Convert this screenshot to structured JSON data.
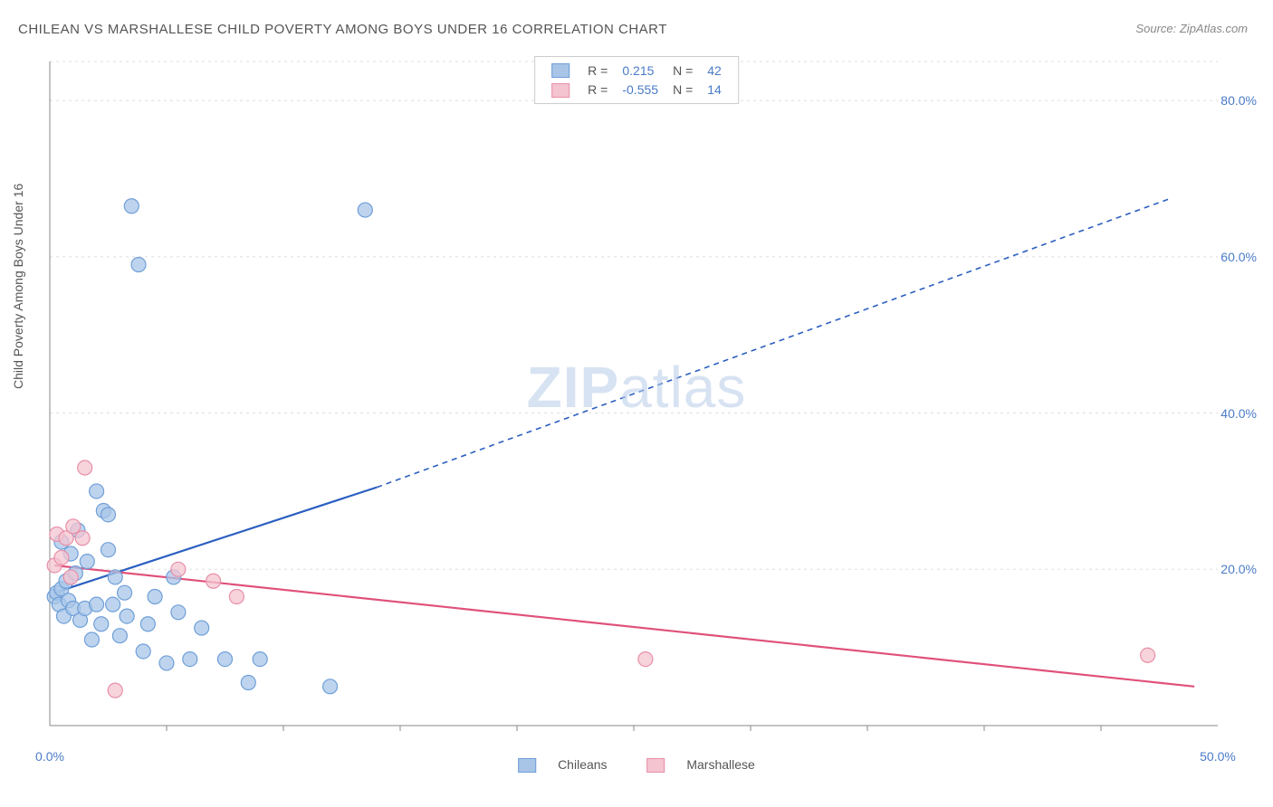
{
  "title": "CHILEAN VS MARSHALLESE CHILD POVERTY AMONG BOYS UNDER 16 CORRELATION CHART",
  "source": "Source: ZipAtlas.com",
  "y_axis_label": "Child Poverty Among Boys Under 16",
  "watermark_bold": "ZIP",
  "watermark_rest": "atlas",
  "chart": {
    "type": "scatter",
    "background_color": "#ffffff",
    "grid_color": "#dddddd",
    "axis_color": "#888888",
    "tick_label_color": "#4a7bc8",
    "xlim": [
      0,
      50
    ],
    "ylim": [
      0,
      85
    ],
    "y_ticks": [
      20,
      40,
      60,
      80
    ],
    "y_tick_labels": [
      "20.0%",
      "40.0%",
      "60.0%",
      "80.0%"
    ],
    "x_ticks": [
      0,
      50
    ],
    "x_tick_labels": [
      "0.0%",
      "50.0%"
    ],
    "x_minor_ticks": [
      5,
      10,
      15,
      20,
      25,
      30,
      35,
      40,
      45
    ],
    "marker_radius": 8,
    "marker_stroke_width": 1.2,
    "line_width_solid": 2.2,
    "line_width_dashed": 1.6,
    "dash_pattern": "6,5",
    "series": [
      {
        "name": "Chileans",
        "color_fill": "#a8c5e8",
        "color_stroke": "#6f9fd8",
        "line_color": "#2b5fc1",
        "r_value": "0.215",
        "n_value": "42",
        "points": [
          [
            0.2,
            16.5
          ],
          [
            0.3,
            17.0
          ],
          [
            0.4,
            15.5
          ],
          [
            0.5,
            17.5
          ],
          [
            0.6,
            14.0
          ],
          [
            0.7,
            18.5
          ],
          [
            0.8,
            16.0
          ],
          [
            0.9,
            22.0
          ],
          [
            1.0,
            15.0
          ],
          [
            1.1,
            19.5
          ],
          [
            1.2,
            25.0
          ],
          [
            1.3,
            13.5
          ],
          [
            1.5,
            15.0
          ],
          [
            1.6,
            21.0
          ],
          [
            1.8,
            11.0
          ],
          [
            2.0,
            15.5
          ],
          [
            2.0,
            30.0
          ],
          [
            2.2,
            13.0
          ],
          [
            2.3,
            27.5
          ],
          [
            2.5,
            22.5
          ],
          [
            2.5,
            27.0
          ],
          [
            2.7,
            15.5
          ],
          [
            2.8,
            19.0
          ],
          [
            3.0,
            11.5
          ],
          [
            3.2,
            17.0
          ],
          [
            3.3,
            14.0
          ],
          [
            3.5,
            66.5
          ],
          [
            3.8,
            59.0
          ],
          [
            4.0,
            9.5
          ],
          [
            4.2,
            13.0
          ],
          [
            4.5,
            16.5
          ],
          [
            5.0,
            8.0
          ],
          [
            5.3,
            19.0
          ],
          [
            5.5,
            14.5
          ],
          [
            6.0,
            8.5
          ],
          [
            6.5,
            12.5
          ],
          [
            7.5,
            8.5
          ],
          [
            8.5,
            5.5
          ],
          [
            9.0,
            8.5
          ],
          [
            12.0,
            5.0
          ],
          [
            13.5,
            66.0
          ],
          [
            0.5,
            23.5
          ]
        ],
        "trend_solid": [
          [
            0.2,
            17.0
          ],
          [
            14.0,
            30.5
          ]
        ],
        "trend_dashed": [
          [
            14.0,
            30.5
          ],
          [
            48.0,
            67.5
          ]
        ]
      },
      {
        "name": "Marshallese",
        "color_fill": "#f4c4d0",
        "color_stroke": "#e88fa8",
        "line_color": "#e0517a",
        "r_value": "-0.555",
        "n_value": "14",
        "points": [
          [
            0.2,
            20.5
          ],
          [
            0.3,
            24.5
          ],
          [
            0.5,
            21.5
          ],
          [
            0.7,
            24.0
          ],
          [
            0.9,
            19.0
          ],
          [
            1.0,
            25.5
          ],
          [
            1.4,
            24.0
          ],
          [
            1.5,
            33.0
          ],
          [
            2.8,
            4.5
          ],
          [
            5.5,
            20.0
          ],
          [
            7.0,
            18.5
          ],
          [
            8.0,
            16.5
          ],
          [
            25.5,
            8.5
          ],
          [
            47.0,
            9.0
          ]
        ],
        "trend_solid": [
          [
            0.2,
            20.5
          ],
          [
            49.0,
            5.0
          ]
        ],
        "trend_dashed": null
      }
    ]
  },
  "legend_top": {
    "r_label": "R =",
    "n_label": "N =",
    "value_color": "#4a7bc8",
    "label_color": "#555555"
  },
  "legend_bottom": {
    "items": [
      "Chileans",
      "Marshallese"
    ]
  }
}
